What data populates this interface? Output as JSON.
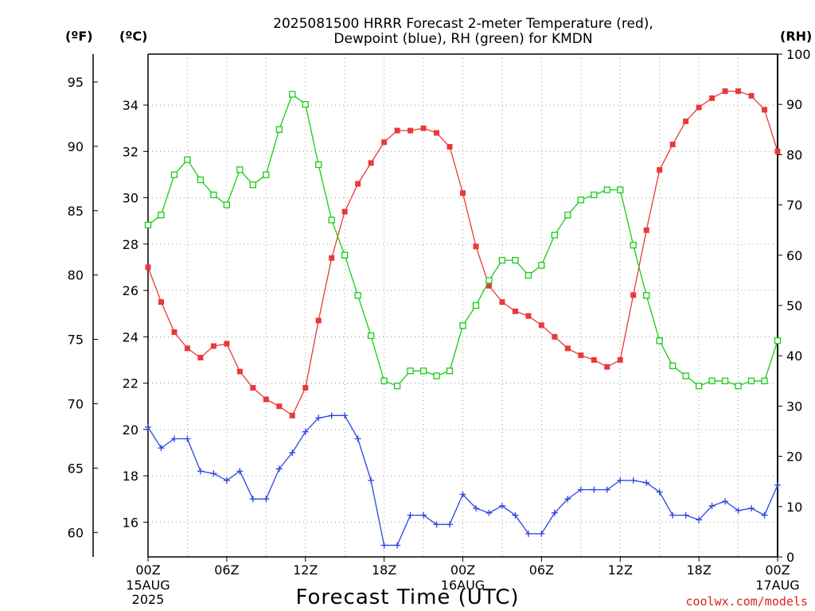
{
  "title_line1": "2025081500 HRRR Forecast 2-meter Temperature (red),",
  "title_line2": "Dewpoint (blue), RH (green) for KMDN",
  "unit_f": "(ºF)",
  "unit_c": "(ºC)",
  "unit_rh": "(RH)",
  "xlabel": "Forecast Time (UTC)",
  "credit": "coolwx.com/models",
  "colors": {
    "temperature": "#e83a3a",
    "dewpoint": "#2a44e0",
    "rh": "#18cc18",
    "grid": "#9a9a9a"
  },
  "chart_data": {
    "type": "line",
    "title": "2025081500 HRRR Forecast 2-meter Temperature (red), Dewpoint (blue), RH (green) for KMDN",
    "xlabel": "Forecast Time (UTC)",
    "x": [
      0,
      1,
      2,
      3,
      4,
      5,
      6,
      7,
      8,
      9,
      10,
      11,
      12,
      13,
      14,
      15,
      16,
      17,
      18,
      19,
      20,
      21,
      22,
      23,
      24,
      25,
      26,
      27,
      28,
      29,
      30,
      31,
      32,
      33,
      34,
      35,
      36,
      37,
      38,
      39,
      40,
      41,
      42,
      43,
      44,
      45,
      46,
      47,
      48
    ],
    "x_ticks": [
      {
        "x": 0,
        "label": "00Z",
        "sub": [
          "15AUG",
          "2025"
        ]
      },
      {
        "x": 6,
        "label": "06Z",
        "sub": []
      },
      {
        "x": 12,
        "label": "12Z",
        "sub": []
      },
      {
        "x": 18,
        "label": "18Z",
        "sub": []
      },
      {
        "x": 24,
        "label": "00Z",
        "sub": [
          "16AUG"
        ]
      },
      {
        "x": 30,
        "label": "06Z",
        "sub": []
      },
      {
        "x": 36,
        "label": "12Z",
        "sub": []
      },
      {
        "x": 42,
        "label": "18Z",
        "sub": []
      },
      {
        "x": 48,
        "label": "00Z",
        "sub": [
          "17AUG"
        ]
      }
    ],
    "celsius_axis": {
      "ylim": [
        14.5,
        36.2
      ],
      "ticks": [
        16,
        18,
        20,
        22,
        24,
        26,
        28,
        30,
        32,
        34
      ]
    },
    "fahrenheit_axis": {
      "ticks": [
        60,
        65,
        70,
        75,
        80,
        85,
        90,
        95
      ]
    },
    "rh_axis": {
      "ylim": [
        0,
        100
      ],
      "ticks": [
        0,
        10,
        20,
        30,
        40,
        50,
        60,
        70,
        80,
        90,
        100
      ]
    },
    "grid": true,
    "series": [
      {
        "name": "Temperature",
        "units": "C",
        "axis": "celsius",
        "marker": "filled-square",
        "color": "#e83a3a",
        "values": [
          27.0,
          25.5,
          24.2,
          23.5,
          23.1,
          23.6,
          23.7,
          22.5,
          21.8,
          21.3,
          21.0,
          20.6,
          21.8,
          24.7,
          27.4,
          29.4,
          30.6,
          31.5,
          32.4,
          32.9,
          32.9,
          33.0,
          32.8,
          32.2,
          30.2,
          27.9,
          26.2,
          25.5,
          25.1,
          24.9,
          24.5,
          24.0,
          23.5,
          23.2,
          23.0,
          22.7,
          23.0,
          25.8,
          28.6,
          31.2,
          32.3,
          33.3,
          33.9,
          34.3,
          34.6,
          34.6,
          34.4,
          33.8,
          32.0
        ]
      },
      {
        "name": "Dewpoint",
        "units": "C",
        "axis": "celsius",
        "marker": "plus",
        "color": "#2a44e0",
        "values": [
          20.1,
          19.2,
          19.6,
          19.6,
          18.2,
          18.1,
          17.8,
          18.2,
          17.0,
          17.0,
          18.3,
          19.0,
          19.9,
          20.5,
          20.6,
          20.6,
          19.6,
          17.8,
          15.0,
          15.0,
          16.3,
          16.3,
          15.9,
          15.9,
          17.2,
          16.6,
          16.4,
          16.7,
          16.3,
          15.5,
          15.5,
          16.4,
          17.0,
          17.4,
          17.4,
          17.4,
          17.8,
          17.8,
          17.7,
          17.3,
          16.3,
          16.3,
          16.1,
          16.7,
          16.9,
          16.5,
          16.6,
          16.3,
          17.6
        ]
      },
      {
        "name": "RH",
        "units": "%",
        "axis": "rh",
        "marker": "open-square",
        "color": "#18cc18",
        "values": [
          66,
          68,
          76,
          79,
          75,
          72,
          70,
          77,
          74,
          76,
          85,
          92,
          90,
          78,
          67,
          60,
          52,
          44,
          35,
          34,
          37,
          37,
          36,
          37,
          46,
          50,
          55,
          59,
          59,
          56,
          58,
          64,
          68,
          71,
          72,
          73,
          73,
          62,
          52,
          43,
          38,
          36,
          34,
          35,
          35,
          34,
          35,
          35,
          43
        ]
      }
    ]
  }
}
